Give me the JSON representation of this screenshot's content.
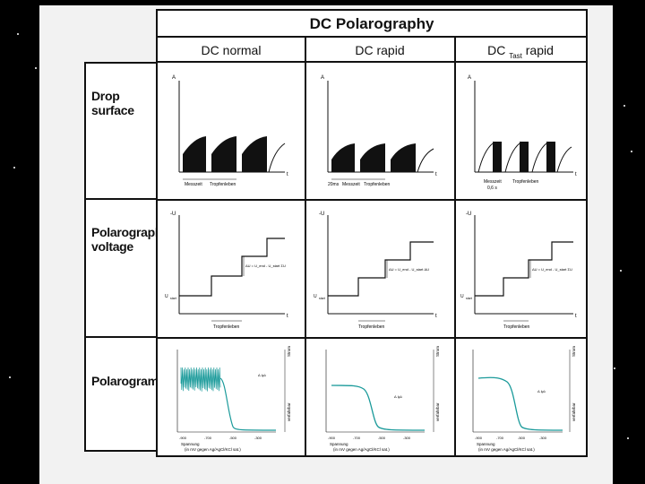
{
  "title": "DC Polarography",
  "columns": [
    {
      "label": "DC normal",
      "sub": ""
    },
    {
      "label": "DC rapid",
      "sub": ""
    },
    {
      "label": "DC ",
      "sub": "Tast",
      "suffix": " rapid"
    }
  ],
  "rows": [
    {
      "line1": "Drop",
      "line2": "surface"
    },
    {
      "line1": "Polarography",
      "line2": "voltage"
    },
    {
      "line1": "Polarogram",
      "line2": ""
    }
  ],
  "axis_labels": {
    "a": "A",
    "t": "t",
    "minus_u": "-U",
    "u_start": "U",
    "u_start_sub": "start"
  },
  "drop_labels": {
    "normal": [
      "Messzeit",
      "Tropfenleben"
    ],
    "rapid": [
      "20ms",
      "Messzeit",
      "Tropfenleben"
    ],
    "tast": [
      "Messzeit",
      "Tropfenleben"
    ],
    "tast_sub": "0,6 s"
  },
  "voltage_labels": {
    "normal_step": "ΔU = U_end - U_start   ΣU",
    "rapid_step": "ΔU = U_end - U_start   ΔU",
    "tast_step": "ΔU = U_end - U_start   ΣU",
    "drop_life": "Tropfenleben"
  },
  "polarogram_labels": {
    "xlabel_1": "Spannung",
    "xlabel_2": "(in mV gegen Ag/AgCl/KCl sat.)",
    "right_top": "Strom",
    "right_bottom": "verfahrbar",
    "middle": "Δ Iμλ",
    "x_ticks": [
      "-900",
      "-700",
      "-500",
      "-300"
    ]
  }
}
